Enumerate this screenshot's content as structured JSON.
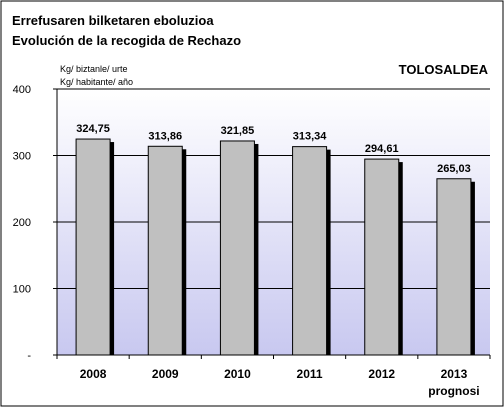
{
  "chart_data": {
    "type": "bar",
    "title_line1": "Errefusaren bilketaren eboluzioa",
    "title_line2": "Evolución de la recogida de Rechazo",
    "unit_line1": "Kg/ biztanle/ urte",
    "unit_line2": "Kg/ habitante/ año",
    "region_label": "TOLOSALDEA",
    "categories": [
      "2008",
      "2009",
      "2010",
      "2011",
      "2012",
      "2013"
    ],
    "category_sublabels": [
      "",
      "",
      "",
      "",
      "",
      "prognosi"
    ],
    "values": [
      324.75,
      313.86,
      321.85,
      313.34,
      294.61,
      265.03
    ],
    "value_labels": [
      "324,75",
      "313,86",
      "321,85",
      "313,34",
      "294,61",
      "265,03"
    ],
    "y_ticks": [
      0,
      100,
      200,
      300,
      400
    ],
    "y_tick_labels": [
      "-",
      "100",
      "200",
      "300",
      "400"
    ],
    "ylim": [
      0,
      400
    ],
    "grid": true,
    "legend": "none",
    "colors": {
      "bar_fill": "#c0c0c0",
      "bar_stroke": "#000000",
      "bar_shadow": "#000000",
      "plot_bg_top": "#ffffff",
      "plot_bg_bottom": "#c8c8f0",
      "grid": "#000000",
      "text": "#000000"
    }
  }
}
